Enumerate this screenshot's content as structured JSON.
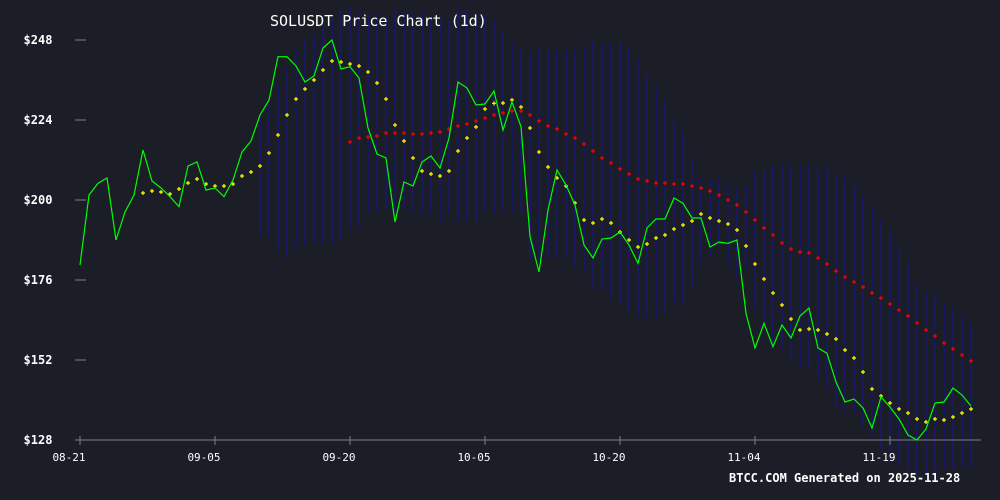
{
  "chart_data": {
    "type": "line",
    "title": "SOLUSDT Price Chart (1d)",
    "footer": "BTCC.COM Generated on 2025-11-28",
    "ylim": [
      128,
      248
    ],
    "y_ticks": [
      "$128",
      "$152",
      "$176",
      "$200",
      "$224",
      "$248"
    ],
    "y_tick_values": [
      128,
      152,
      176,
      200,
      224,
      248
    ],
    "x_ticks": [
      "08-21",
      "09-05",
      "09-20",
      "10-05",
      "10-20",
      "11-04",
      "11-19"
    ],
    "grid": false,
    "colors": {
      "background": "#1b1d27",
      "price": "#00ff00",
      "ma_short": "#ffff00",
      "ma_long": "#ff0000",
      "bands": "#16168a",
      "axis": "#808080",
      "text": "#ffffff"
    },
    "dates": [
      "08-21",
      "08-22",
      "08-23",
      "08-24",
      "08-25",
      "08-26",
      "08-27",
      "08-28",
      "08-29",
      "08-30",
      "08-31",
      "09-01",
      "09-02",
      "09-03",
      "09-04",
      "09-05",
      "09-06",
      "09-07",
      "09-08",
      "09-09",
      "09-10",
      "09-11",
      "09-12",
      "09-13",
      "09-14",
      "09-15",
      "09-16",
      "09-17",
      "09-18",
      "09-19",
      "09-20",
      "09-21",
      "09-22",
      "09-23",
      "09-24",
      "09-25",
      "09-26",
      "09-27",
      "09-28",
      "09-29",
      "09-30",
      "10-01",
      "10-02",
      "10-03",
      "10-04",
      "10-05",
      "10-06",
      "10-07",
      "10-08",
      "10-09",
      "10-10",
      "10-11",
      "10-12",
      "10-13",
      "10-14",
      "10-15",
      "10-16",
      "10-17",
      "10-18",
      "10-19",
      "10-20",
      "10-21",
      "10-22",
      "10-23",
      "10-24",
      "10-25",
      "10-26",
      "10-27",
      "10-28",
      "10-29",
      "10-30",
      "10-31",
      "11-01",
      "11-02",
      "11-03",
      "11-04",
      "11-05",
      "11-06",
      "11-07",
      "11-08",
      "11-09",
      "11-10",
      "11-11",
      "11-12",
      "11-13",
      "11-14",
      "11-15",
      "11-16",
      "11-17",
      "11-18",
      "11-19",
      "11-20",
      "11-21",
      "11-22",
      "11-23",
      "11-24",
      "11-25",
      "11-26",
      "11-27",
      "11-28"
    ],
    "series": [
      {
        "key": "price",
        "style": "line",
        "values": [
          180.5,
          201.5,
          205,
          206.6,
          188,
          196.4,
          201.5,
          215,
          205.7,
          203.6,
          201,
          198,
          210.2,
          211.4,
          203,
          203.6,
          201,
          206,
          214.4,
          217.7,
          225.5,
          230,
          243,
          243,
          240.2,
          235.4,
          237.2,
          245.6,
          248,
          239.3,
          240,
          236.6,
          221.6,
          213.8,
          212.6,
          193.4,
          205.4,
          204.2,
          211.4,
          213.2,
          209.6,
          218.6,
          235.4,
          233.6,
          228.5,
          228.8,
          232.7,
          221,
          229.4,
          222,
          189,
          178.4,
          197,
          209,
          204.5,
          198.5,
          186.5,
          182.6,
          188.3,
          188.6,
          190.4,
          186.5,
          181,
          191.6,
          194.3,
          194.3,
          200.6,
          199,
          194.6,
          194.6,
          185.9,
          187.4,
          187,
          188,
          166,
          155.6,
          163,
          156,
          162.5,
          158.6,
          165.2,
          167.6,
          155.6,
          154,
          145.4,
          139.4,
          140.3,
          137.6,
          131.6,
          140.9,
          137.9,
          134.3,
          129.5,
          128,
          131.3,
          139.1,
          139.4,
          143.6,
          141.5,
          138.2
        ]
      },
      {
        "key": "ma_short",
        "style": "markers",
        "values": [
          null,
          null,
          null,
          null,
          null,
          null,
          null,
          202.1,
          202.7,
          202.4,
          201.8,
          203.3,
          205.1,
          206.3,
          204.8,
          204.2,
          204.2,
          204.8,
          207.2,
          208.4,
          210.2,
          214.1,
          219.5,
          225.5,
          230.3,
          233.3,
          236,
          239,
          241.7,
          241.4,
          240.8,
          240.2,
          238.4,
          235.1,
          230.3,
          222.5,
          217.7,
          212.6,
          208.7,
          207.8,
          207.2,
          208.7,
          214.7,
          218.6,
          221.9,
          227.3,
          229,
          229.1,
          230,
          227.9,
          221.6,
          214.4,
          209.9,
          206.6,
          204.2,
          199.1,
          194,
          193.1,
          194.3,
          193.1,
          190.4,
          188,
          185.9,
          186.8,
          188.6,
          189.5,
          191.3,
          192.5,
          193.7,
          195.8,
          194.6,
          193.7,
          192.8,
          191,
          186.2,
          180.8,
          176.3,
          172.1,
          168.5,
          164.3,
          161,
          161.3,
          161,
          159.8,
          158.3,
          155,
          152.6,
          148.4,
          143.3,
          141.2,
          139.1,
          137.3,
          136.1,
          134.3,
          133.4,
          134.3,
          134,
          134.9,
          136.1,
          137.3
        ]
      },
      {
        "key": "ma_long",
        "style": "markers",
        "values": [
          null,
          null,
          null,
          null,
          null,
          null,
          null,
          null,
          null,
          null,
          null,
          null,
          null,
          null,
          null,
          null,
          null,
          null,
          null,
          null,
          null,
          null,
          null,
          null,
          null,
          null,
          null,
          null,
          null,
          null,
          217.4,
          218.6,
          218.9,
          219.2,
          220.1,
          220.1,
          220.1,
          219.8,
          219.8,
          220.1,
          220.4,
          221.3,
          222.2,
          222.8,
          223.7,
          224.6,
          225.5,
          226.1,
          226.7,
          226.7,
          225.5,
          223.7,
          222.2,
          221.3,
          219.8,
          218.6,
          216.8,
          214.7,
          212.6,
          211.1,
          209.3,
          207.8,
          206.3,
          205.7,
          205.1,
          205.1,
          204.8,
          204.8,
          204.2,
          203.6,
          202.7,
          201.5,
          200,
          198.5,
          196.4,
          194,
          191.6,
          189.5,
          187.1,
          185.3,
          184.4,
          184.1,
          182.6,
          180.8,
          178.7,
          176.9,
          175.4,
          173.9,
          172.1,
          170.6,
          168.8,
          167,
          165.2,
          163.1,
          161,
          159.2,
          157.1,
          155.3,
          153.5,
          151.7
        ]
      },
      {
        "key": "band_upper",
        "style": "range-top",
        "values": [
          null,
          null,
          null,
          null,
          null,
          null,
          null,
          null,
          null,
          null,
          null,
          null,
          null,
          null,
          null,
          null,
          null,
          null,
          null,
          null,
          226.1,
          229.1,
          235.1,
          239.9,
          245,
          248,
          250.1,
          251.9,
          254.9,
          257,
          258.5,
          257,
          256.1,
          256.1,
          254.9,
          257,
          257,
          256.1,
          257,
          254.9,
          254.9,
          254,
          257.9,
          257,
          256.1,
          256.1,
          254,
          250.4,
          247.4,
          245,
          244.7,
          245.6,
          245,
          245,
          245,
          245,
          246.2,
          247.4,
          247.4,
          247.4,
          247.4,
          245.9,
          242,
          238.1,
          234.2,
          230,
          224,
          220.4,
          212.9,
          206.9,
          206,
          206.6,
          205.1,
          203.9,
          203.6,
          209,
          209,
          211.1,
          211.1,
          211.1,
          211.1,
          211.1,
          209.9,
          209.9,
          208.1,
          206.9,
          205.1,
          201.5,
          198.5,
          194,
          190.4,
          185.9,
          181.1,
          175.1,
          172.4,
          172.1,
          169.1,
          167.9,
          165.5,
          163.1
        ]
      },
      {
        "key": "band_lower",
        "style": "range-bottom",
        "values": [
          null,
          null,
          null,
          null,
          null,
          null,
          null,
          null,
          null,
          null,
          null,
          null,
          null,
          null,
          null,
          null,
          null,
          null,
          null,
          null,
          190.1,
          188.9,
          185,
          182.6,
          185,
          186.5,
          186.5,
          186.5,
          186.5,
          188,
          191,
          191.9,
          196.1,
          196.1,
          197,
          196.4,
          197,
          196.1,
          195.5,
          196.1,
          193.4,
          196.1,
          193.4,
          193.4,
          193.4,
          196.1,
          196.1,
          196.1,
          196.1,
          196.1,
          182,
          182,
          182.6,
          182.6,
          182.6,
          179.9,
          178.1,
          173,
          173,
          170.6,
          169.1,
          166.4,
          164.6,
          164.9,
          164.9,
          166.1,
          169.1,
          168.5,
          173.9,
          181.1,
          182.9,
          185.6,
          179.9,
          176.6,
          179.9,
          167.9,
          161.9,
          155,
          155,
          152,
          149.9,
          149.9,
          146,
          143,
          137.9,
          136.1,
          136.1,
          131.9,
          128.9,
          125,
          122,
          120.5,
          119,
          117.5,
          117.5,
          117.5,
          119,
          119,
          119,
          119
        ]
      }
    ]
  }
}
